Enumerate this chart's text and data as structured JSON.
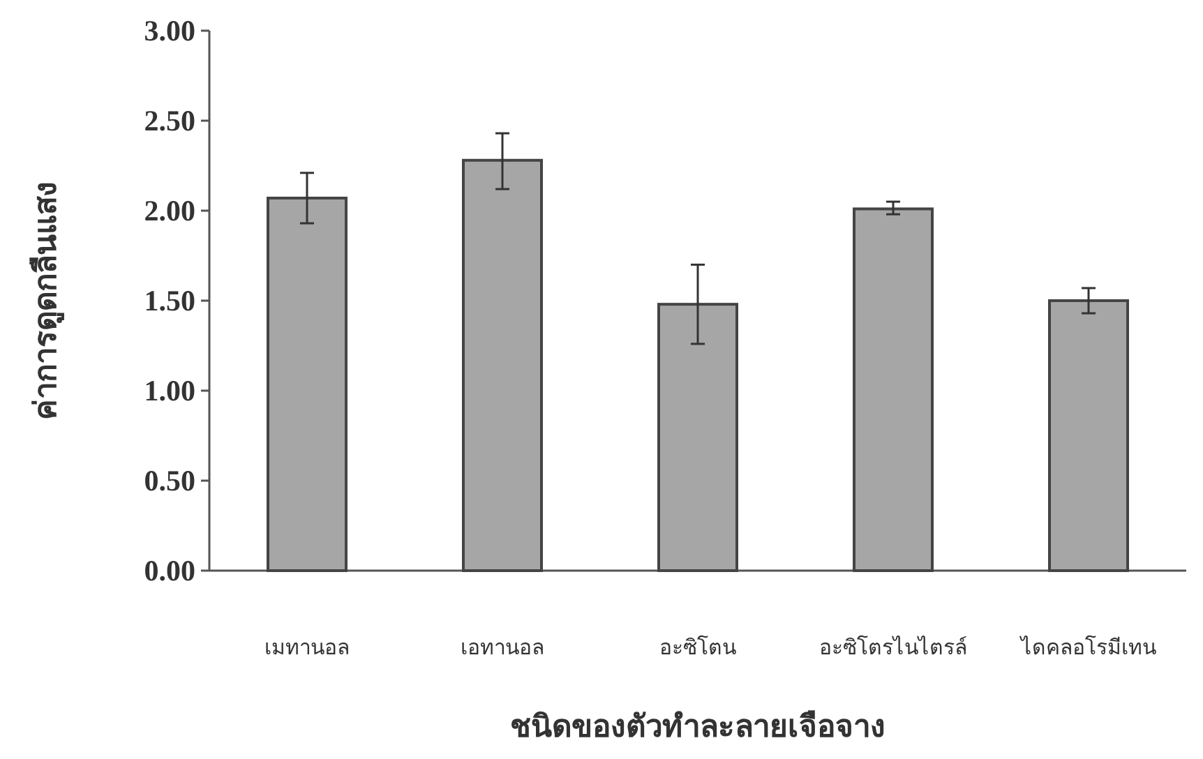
{
  "chart_data": {
    "type": "bar",
    "xlabel": "ชนิดของตัวทำละลายเจือจาง",
    "ylabel": "ค่าการดูดกลืนแสง",
    "categories": [
      "เมทานอล",
      "เอทานอล",
      "อะซิโตน",
      "อะซิโตรไนไตรล์",
      "ไดคลอโรมีเทน"
    ],
    "values": [
      2.07,
      2.28,
      1.48,
      2.01,
      1.5
    ],
    "errors": [
      [
        1.93,
        2.21
      ],
      [
        2.12,
        2.43
      ],
      [
        1.26,
        1.7
      ],
      [
        1.98,
        2.05
      ],
      [
        1.43,
        1.57
      ]
    ],
    "color": "#a6a6a6",
    "ylim": [
      0,
      3
    ],
    "yticks": [
      {
        "value": 0,
        "label": "0.00"
      },
      {
        "value": 0.5,
        "label": "0.50"
      },
      {
        "value": 1,
        "label": "1.00"
      },
      {
        "value": 1.5,
        "label": "1.50"
      },
      {
        "value": 2,
        "label": "2.00"
      },
      {
        "value": 2.5,
        "label": "2.50"
      },
      {
        "value": 3,
        "label": "3.00"
      }
    ],
    "grid": false
  }
}
